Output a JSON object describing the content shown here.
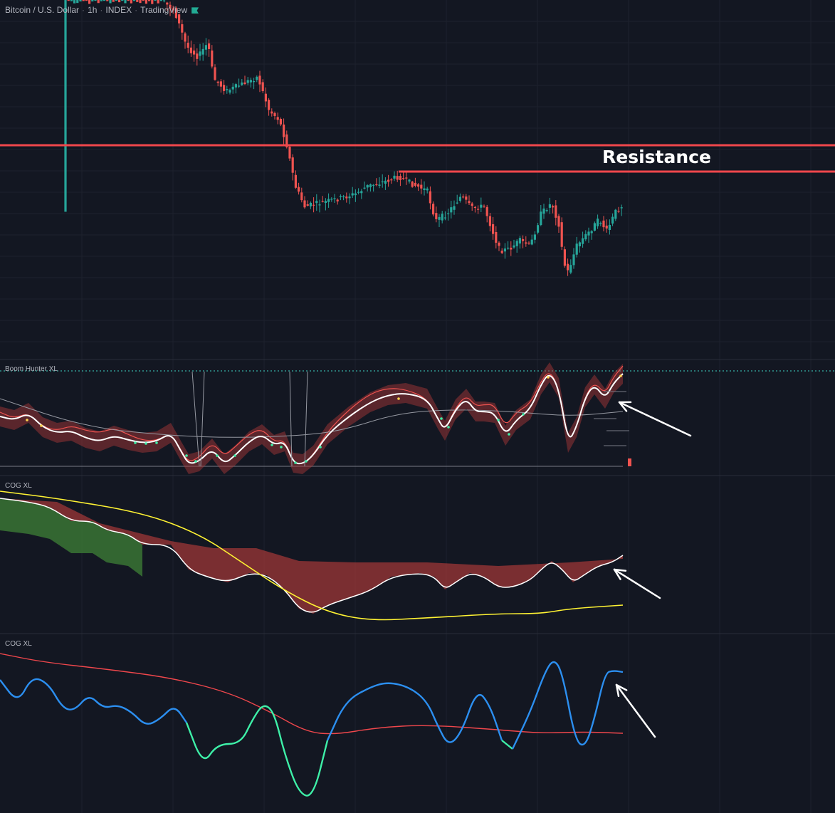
{
  "header": {
    "symbol": "Bitcoin / U.S. Dollar",
    "interval": "1h",
    "exchange": "INDEX",
    "source": "TradingView"
  },
  "annotations": {
    "resistance_label": "Resistance"
  },
  "panes": {
    "indicator1_title": "Boom Hunter XL",
    "indicator2_title": "COG XL",
    "indicator3_title": "COG XL"
  },
  "colors": {
    "background": "#131722",
    "grid": "#1e222d",
    "bull_candle": "#26a69a",
    "bear_candle": "#ef5350",
    "resistance_line": "#f0474c",
    "white_line": "#ffffff",
    "yellow_line": "#fff333",
    "blue_line": "#2c8ff0",
    "mint_line": "#3ef0a8",
    "red_fill": "#b23a3a",
    "green_fill": "#3c7a36",
    "dotted_line": "#3fd6c5"
  },
  "icons": {
    "flag": "green-flag-icon",
    "arrows": "white-arrow-icon"
  }
}
